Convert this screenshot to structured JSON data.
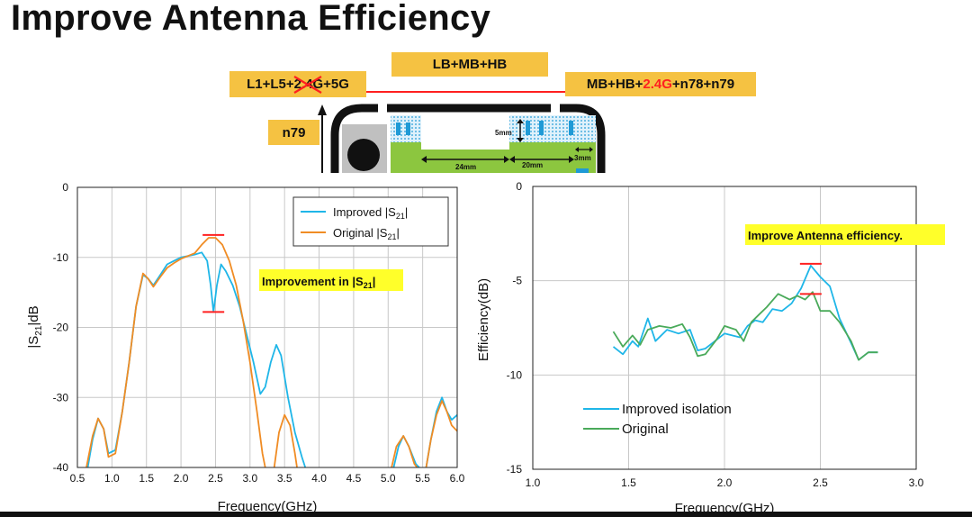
{
  "slide": {
    "title": "Improve Antenna Efficiency"
  },
  "diagram": {
    "tag_left_prefix": "L1+L5+",
    "tag_left_struck": "2.4G",
    "tag_left_suffix": "+5G",
    "tag_center": "LB+MB+HB",
    "tag_right_prefix": "MB+HB+",
    "tag_right_highlight": "2.4G",
    "tag_right_suffix": "+n78+n79",
    "tag_n79": "n79",
    "dim_height": "5mm",
    "dim_width_a": "24mm",
    "dim_width_b": "20mm",
    "dim_gap": "3mm",
    "colors": {
      "tag": "#f5c242",
      "ground": "#8cc63f",
      "antenna": "#1f9ad6",
      "highlight": "#ff2020"
    }
  },
  "chart_data": [
    {
      "type": "line",
      "xlabel": "Frequency(GHz)",
      "ylabel_main": "|S",
      "ylabel_sub": "21",
      "ylabel_tail": "|dB",
      "xlim": [
        0.5,
        6.0
      ],
      "ylim": [
        -40,
        0
      ],
      "xticks": [
        "0.5",
        "1.0",
        "1.5",
        "2.0",
        "2.5",
        "3.0",
        "3.5",
        "4.0",
        "4.5",
        "5.0",
        "5.5",
        "6.0"
      ],
      "yticks": [
        "0",
        "-10",
        "-20",
        "-30",
        "-40"
      ],
      "grid": true,
      "legend_position": "top-right",
      "annotation": {
        "text_main": "Improvement in |S",
        "text_sub": "21",
        "text_tail": "|"
      },
      "markers": [
        {
          "x": 2.47,
          "y": -6.8
        },
        {
          "x": 2.47,
          "y": -17.8
        }
      ],
      "series": [
        {
          "name_main": "Improved |S",
          "name_sub": "21",
          "name_tail": "|",
          "color": "#1fb6e8",
          "segments": [
            [
              [
                0.65,
                -40
              ],
              [
                0.72,
                -36
              ],
              [
                0.8,
                -33
              ],
              [
                0.88,
                -34.5
              ],
              [
                0.95,
                -38
              ],
              [
                1.05,
                -37.5
              ],
              [
                1.15,
                -32
              ],
              [
                1.25,
                -25
              ],
              [
                1.35,
                -17
              ],
              [
                1.45,
                -12.5
              ],
              [
                1.52,
                -13
              ],
              [
                1.6,
                -14
              ],
              [
                1.7,
                -12.5
              ],
              [
                1.8,
                -11
              ],
              [
                1.9,
                -10.5
              ],
              [
                2.0,
                -10
              ],
              [
                2.1,
                -9.8
              ],
              [
                2.2,
                -9.6
              ],
              [
                2.3,
                -9.3
              ],
              [
                2.38,
                -10.5
              ],
              [
                2.43,
                -14
              ],
              [
                2.47,
                -17.8
              ],
              [
                2.52,
                -14
              ],
              [
                2.58,
                -11
              ],
              [
                2.65,
                -12
              ],
              [
                2.75,
                -14
              ],
              [
                2.85,
                -17
              ],
              [
                2.95,
                -21
              ],
              [
                3.05,
                -25
              ],
              [
                3.15,
                -29.5
              ],
              [
                3.22,
                -28.5
              ],
              [
                3.3,
                -25
              ],
              [
                3.38,
                -22.5
              ],
              [
                3.45,
                -24
              ],
              [
                3.55,
                -30
              ],
              [
                3.65,
                -35
              ],
              [
                3.75,
                -38.5
              ],
              [
                3.8,
                -40
              ]
            ],
            [
              [
                5.08,
                -40
              ],
              [
                5.15,
                -37
              ],
              [
                5.22,
                -35.5
              ],
              [
                5.3,
                -37
              ],
              [
                5.4,
                -39.5
              ],
              [
                5.45,
                -40
              ]
            ],
            [
              [
                5.55,
                -40
              ],
              [
                5.62,
                -36
              ],
              [
                5.7,
                -32
              ],
              [
                5.78,
                -30
              ],
              [
                5.85,
                -32
              ],
              [
                5.92,
                -33.2
              ],
              [
                6.0,
                -32.5
              ]
            ]
          ]
        },
        {
          "name_main": "Original |S",
          "name_sub": "21",
          "name_tail": "|",
          "color": "#f08c24",
          "segments": [
            [
              [
                0.63,
                -40
              ],
              [
                0.72,
                -35.5
              ],
              [
                0.8,
                -33
              ],
              [
                0.88,
                -34.5
              ],
              [
                0.95,
                -38.5
              ],
              [
                1.05,
                -38
              ],
              [
                1.15,
                -32
              ],
              [
                1.25,
                -25
              ],
              [
                1.35,
                -17
              ],
              [
                1.45,
                -12.3
              ],
              [
                1.52,
                -13
              ],
              [
                1.6,
                -14.2
              ],
              [
                1.7,
                -12.8
              ],
              [
                1.8,
                -11.5
              ],
              [
                1.9,
                -10.8
              ],
              [
                2.0,
                -10.2
              ],
              [
                2.1,
                -9.8
              ],
              [
                2.2,
                -9.4
              ],
              [
                2.3,
                -8.2
              ],
              [
                2.4,
                -7.2
              ],
              [
                2.5,
                -7.2
              ],
              [
                2.6,
                -8.2
              ],
              [
                2.7,
                -10.5
              ],
              [
                2.8,
                -14
              ],
              [
                2.9,
                -19
              ],
              [
                3.0,
                -25
              ],
              [
                3.1,
                -32
              ],
              [
                3.18,
                -38
              ],
              [
                3.22,
                -40
              ]
            ],
            [
              [
                3.35,
                -40
              ],
              [
                3.42,
                -35
              ],
              [
                3.5,
                -32.5
              ],
              [
                3.58,
                -34
              ],
              [
                3.65,
                -38
              ],
              [
                3.68,
                -40
              ]
            ],
            [
              [
                5.05,
                -40
              ],
              [
                5.12,
                -37
              ],
              [
                5.22,
                -35.5
              ],
              [
                5.3,
                -37
              ],
              [
                5.38,
                -39.5
              ],
              [
                5.42,
                -40
              ]
            ],
            [
              [
                5.55,
                -40
              ],
              [
                5.62,
                -36
              ],
              [
                5.7,
                -32.5
              ],
              [
                5.78,
                -30.5
              ],
              [
                5.85,
                -32
              ],
              [
                5.92,
                -34
              ],
              [
                6.0,
                -34.8
              ]
            ]
          ]
        }
      ]
    },
    {
      "type": "line",
      "xlabel": "Frequency(GHz)",
      "ylabel": "Efficiency(dB)",
      "xlim": [
        1.0,
        3.0
      ],
      "ylim": [
        -15,
        0
      ],
      "xticks": [
        "1.0",
        "1.5",
        "2.0",
        "2.5",
        "3.0"
      ],
      "yticks": [
        "0",
        "-5",
        "-10",
        "-15"
      ],
      "grid": true,
      "legend_position": "bottom-left",
      "annotation": {
        "text": "Improve Antenna efficiency."
      },
      "markers": [
        {
          "x": 2.45,
          "y": -4.1
        },
        {
          "x": 2.45,
          "y": -5.7
        }
      ],
      "series": [
        {
          "name": "Improved isolation",
          "color": "#1fb6e8",
          "segments": [
            [
              [
                1.42,
                -8.5
              ],
              [
                1.47,
                -8.9
              ],
              [
                1.52,
                -8.2
              ],
              [
                1.55,
                -8.5
              ],
              [
                1.6,
                -7.0
              ],
              [
                1.64,
                -8.2
              ],
              [
                1.7,
                -7.6
              ],
              [
                1.76,
                -7.8
              ],
              [
                1.82,
                -7.6
              ],
              [
                1.86,
                -8.7
              ],
              [
                1.9,
                -8.6
              ],
              [
                1.95,
                -8.2
              ],
              [
                2.0,
                -7.8
              ],
              [
                2.04,
                -7.9
              ],
              [
                2.08,
                -8.0
              ],
              [
                2.12,
                -7.4
              ],
              [
                2.16,
                -7.1
              ],
              [
                2.2,
                -7.2
              ],
              [
                2.25,
                -6.5
              ],
              [
                2.3,
                -6.6
              ],
              [
                2.35,
                -6.2
              ],
              [
                2.4,
                -5.4
              ],
              [
                2.45,
                -4.2
              ],
              [
                2.5,
                -4.8
              ],
              [
                2.55,
                -5.3
              ],
              [
                2.6,
                -7.0
              ],
              [
                2.66,
                -8.3
              ],
              [
                2.7,
                -9.2
              ],
              [
                2.75,
                -8.8
              ],
              [
                2.8,
                -8.8
              ]
            ]
          ]
        },
        {
          "name": "Original",
          "color": "#4aaa5a",
          "segments": [
            [
              [
                1.42,
                -7.7
              ],
              [
                1.47,
                -8.5
              ],
              [
                1.52,
                -7.9
              ],
              [
                1.56,
                -8.4
              ],
              [
                1.6,
                -7.6
              ],
              [
                1.66,
                -7.4
              ],
              [
                1.72,
                -7.5
              ],
              [
                1.78,
                -7.3
              ],
              [
                1.82,
                -8.0
              ],
              [
                1.86,
                -9.0
              ],
              [
                1.9,
                -8.9
              ],
              [
                1.96,
                -8.1
              ],
              [
                2.0,
                -7.4
              ],
              [
                2.06,
                -7.6
              ],
              [
                2.1,
                -8.2
              ],
              [
                2.14,
                -7.2
              ],
              [
                2.18,
                -6.8
              ],
              [
                2.22,
                -6.4
              ],
              [
                2.28,
                -5.7
              ],
              [
                2.34,
                -6.0
              ],
              [
                2.38,
                -5.8
              ],
              [
                2.42,
                -6.0
              ],
              [
                2.46,
                -5.6
              ],
              [
                2.5,
                -6.6
              ],
              [
                2.55,
                -6.6
              ],
              [
                2.6,
                -7.2
              ],
              [
                2.66,
                -8.2
              ],
              [
                2.7,
                -9.2
              ],
              [
                2.75,
                -8.8
              ],
              [
                2.8,
                -8.8
              ]
            ]
          ]
        }
      ]
    }
  ]
}
